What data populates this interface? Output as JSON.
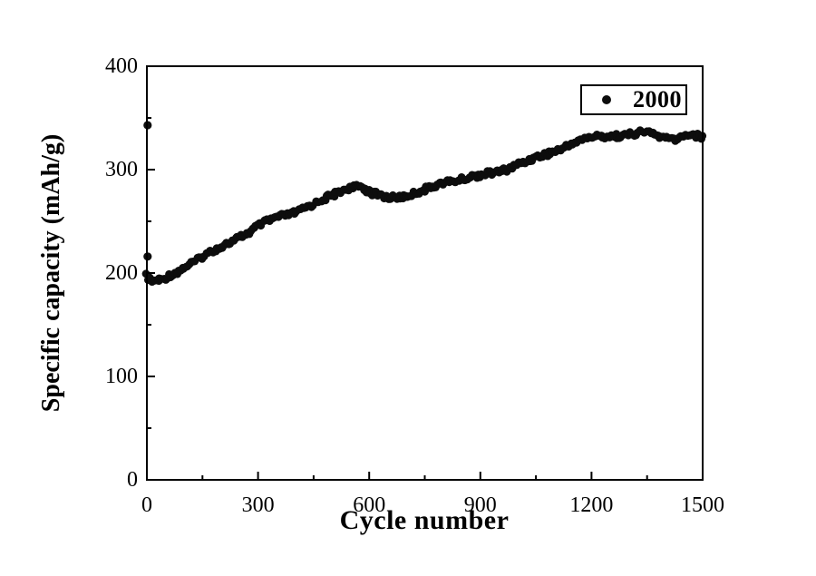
{
  "figure": {
    "background_color": "#ffffff",
    "frame_color": "#000000",
    "marker_color": "#0d0d0d"
  },
  "chart_data": {
    "type": "scatter",
    "title": "",
    "xlabel": "Cycle number",
    "ylabel": "Specific capacity (mAh/g)",
    "xlim": [
      0,
      1500
    ],
    "ylim": [
      0,
      400
    ],
    "x_ticks": [
      0,
      300,
      600,
      900,
      1200,
      1500
    ],
    "x_minor_ticks": [
      150,
      450,
      750,
      1050,
      1350
    ],
    "y_ticks": [
      0,
      100,
      200,
      300,
      400
    ],
    "y_minor_ticks": [
      50,
      150,
      250,
      350
    ],
    "grid": false,
    "legend": {
      "label": "2000",
      "position": "upper-right",
      "border": true,
      "marker": "filled-circle"
    },
    "series": [
      {
        "name": "2000",
        "marker": "filled-circle",
        "color": "#0d0d0d",
        "trend_points": [
          [
            0,
            197
          ],
          [
            15,
            191
          ],
          [
            40,
            192
          ],
          [
            75,
            199
          ],
          [
            100,
            205
          ],
          [
            150,
            215
          ],
          [
            200,
            225
          ],
          [
            250,
            236
          ],
          [
            300,
            246
          ],
          [
            350,
            254
          ],
          [
            400,
            259
          ],
          [
            450,
            265
          ],
          [
            500,
            274
          ],
          [
            540,
            282
          ],
          [
            575,
            284
          ],
          [
            610,
            277
          ],
          [
            650,
            274
          ],
          [
            700,
            276
          ],
          [
            750,
            280
          ],
          [
            800,
            287
          ],
          [
            850,
            290
          ],
          [
            900,
            293
          ],
          [
            950,
            298
          ],
          [
            1000,
            306
          ],
          [
            1050,
            312
          ],
          [
            1100,
            319
          ],
          [
            1150,
            326
          ],
          [
            1200,
            330
          ],
          [
            1250,
            332
          ],
          [
            1300,
            333
          ],
          [
            1350,
            336
          ],
          [
            1400,
            332
          ],
          [
            1430,
            331
          ],
          [
            1460,
            335
          ],
          [
            1500,
            331
          ]
        ],
        "outlier_points": [
          [
            2,
            343
          ],
          [
            2,
            216
          ]
        ],
        "sampling_step_cycles": 5,
        "band_half_width_mAh_g": 4
      }
    ]
  }
}
